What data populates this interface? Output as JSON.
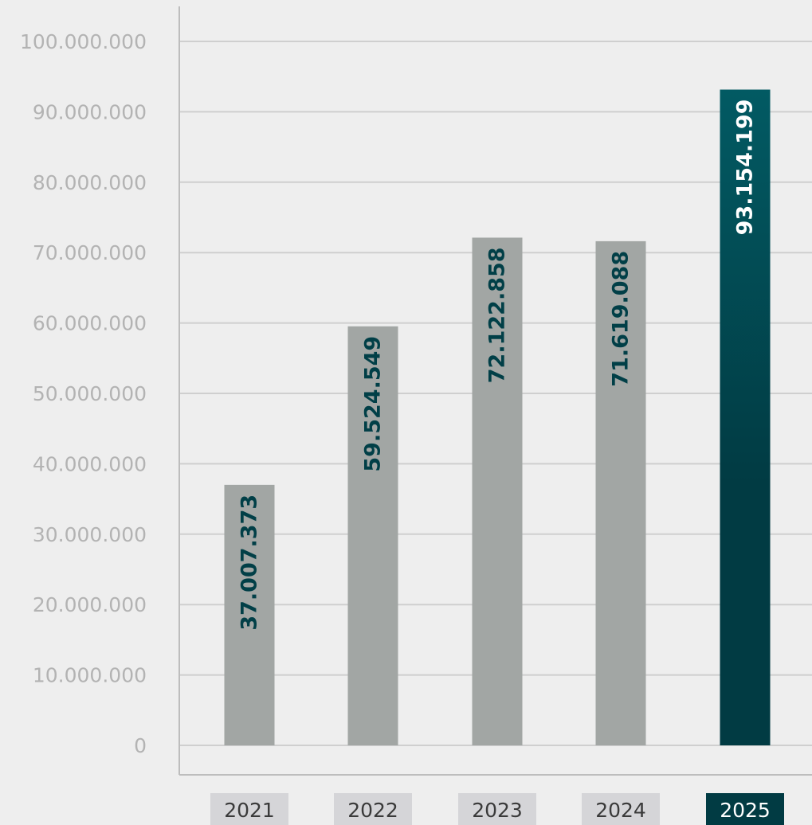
{
  "chart_data": {
    "type": "bar",
    "categories": [
      "2021",
      "2022",
      "2023",
      "2024",
      "2025"
    ],
    "values": [
      37007373,
      59524549,
      72122858,
      71619088,
      93154199
    ],
    "value_labels": [
      "37.007.373",
      "59.524.549",
      "72.122.858",
      "71.619.088",
      "93.154.199"
    ],
    "ylim": [
      0,
      100000000
    ],
    "y_ticks": [
      0,
      10000000,
      20000000,
      30000000,
      40000000,
      50000000,
      60000000,
      70000000,
      80000000,
      90000000,
      100000000
    ],
    "y_tick_labels": [
      "0",
      "10.000.000",
      "20.000.000",
      "30.000.000",
      "40.000.000",
      "50.000.000",
      "60.000.000",
      "70.000.000",
      "80.000.000",
      "90.000.000",
      "100.000.000"
    ],
    "highlight_category": "2025",
    "grid": true,
    "title": "",
    "xlabel": "",
    "ylabel": ""
  },
  "colors": {
    "background": "#eeeeee",
    "bar": "#a2a6a4",
    "bar_highlight_top": "#025a63",
    "bar_highlight_bottom": "#013b43",
    "data_label": "#013f47",
    "data_label_highlight": "#ffffff",
    "grid": "#cfcfcf",
    "axis": "#bdbdbd",
    "tick_label": "#b3b3b3",
    "category_box": "#d5d5d8",
    "category_box_highlight": "#013b43",
    "category_text": "#3a3a3a",
    "category_text_highlight": "#ffffff"
  }
}
